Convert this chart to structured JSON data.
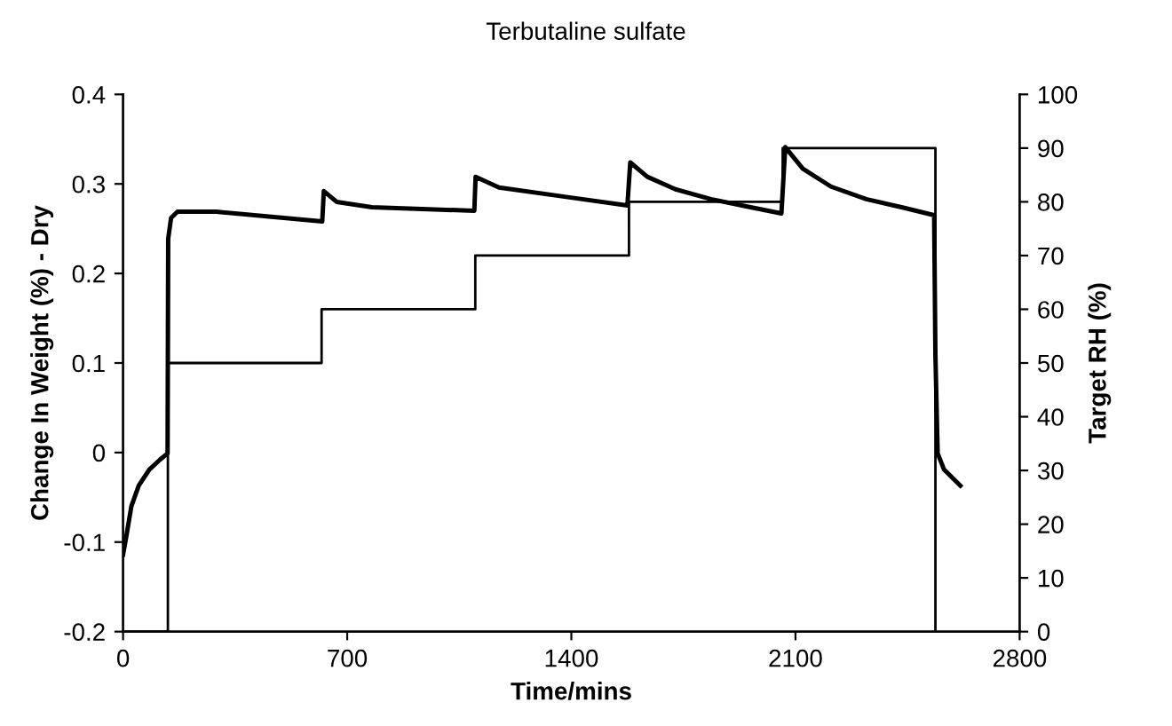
{
  "chart_data": {
    "type": "line",
    "title": "Terbutaline sulfate",
    "xlabel": "Time/mins",
    "ylabel": "Change In Weight (%) - Dry",
    "y2label": "Target RH (%)",
    "xlim": [
      0,
      2800
    ],
    "xticks": [
      0,
      700,
      1400,
      2100,
      2800
    ],
    "ylim": [
      -0.2,
      0.4
    ],
    "yticks": [
      -0.2,
      -0.1,
      0,
      0.1,
      0.2,
      0.3,
      0.4
    ],
    "y2lim": [
      0,
      100
    ],
    "y2ticks": [
      0,
      10,
      20,
      30,
      40,
      50,
      60,
      70,
      80,
      90,
      100
    ],
    "grid": false,
    "legend": false,
    "series": [
      {
        "color": "#000000",
        "x": [
          0,
          9,
          26,
          49,
          82,
          115,
          139,
          141,
          150,
          170,
          291,
          622,
          627,
          667,
          777,
          1097,
          1101,
          1174,
          1394,
          1575,
          1584,
          1637,
          1725,
          1836,
          1946,
          2056,
          2068,
          2123,
          2211,
          2321,
          2431,
          2533,
          2537,
          2544,
          2564,
          2615
        ],
        "values": [
          -0.114,
          -0.096,
          -0.06,
          -0.037,
          -0.019,
          -0.008,
          -0.001,
          0.239,
          0.262,
          0.269,
          0.269,
          0.258,
          0.292,
          0.28,
          0.274,
          0.27,
          0.308,
          0.296,
          0.285,
          0.276,
          0.324,
          0.308,
          0.294,
          0.283,
          0.275,
          0.267,
          0.341,
          0.317,
          0.297,
          0.283,
          0.274,
          0.265,
          0.108,
          -0.001,
          -0.019,
          -0.037
        ]
      },
      {
        "type": "step",
        "axis": "y2",
        "color": "#000000",
        "x": [
          0,
          140,
          620,
          1100,
          1580,
          2060,
          2537
        ],
        "values": [
          0,
          50,
          60,
          70,
          80,
          90,
          0
        ]
      }
    ]
  }
}
